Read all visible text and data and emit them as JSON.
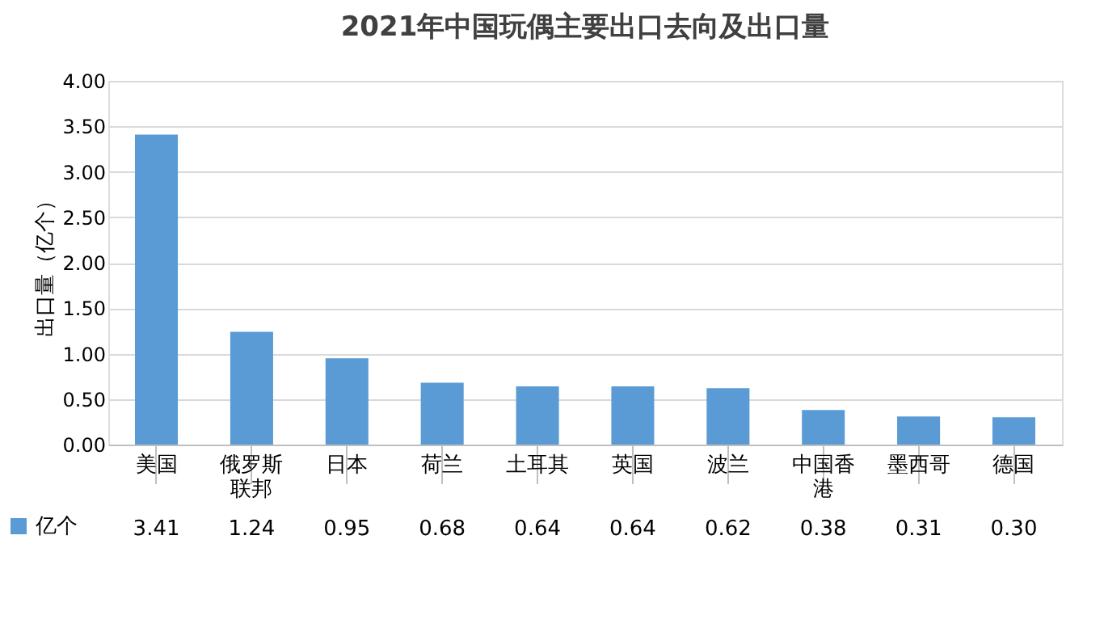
{
  "chart_data": {
    "type": "bar",
    "title": "2021年中国玩偶主要出口去向及出口量",
    "ylabel": "出口量（亿个）",
    "categories": [
      "美国",
      "俄罗斯联邦",
      "日本",
      "荷兰",
      "土耳其",
      "英国",
      "波兰",
      "中国香港",
      "墨西哥",
      "德国"
    ],
    "series": [
      {
        "name": "亿个",
        "color": "#5b9bd5",
        "values": [
          3.41,
          1.24,
          0.95,
          0.68,
          0.64,
          0.64,
          0.62,
          0.38,
          0.31,
          0.3
        ],
        "value_labels": [
          "3.41",
          "1.24",
          "0.95",
          "0.68",
          "0.64",
          "0.64",
          "0.62",
          "0.38",
          "0.31",
          "0.30"
        ]
      }
    ],
    "ylim": [
      0,
      4
    ],
    "yticks": [
      {
        "value": 0,
        "label": "0.00"
      },
      {
        "value": 0.5,
        "label": "0.50"
      },
      {
        "value": 1,
        "label": "1.00"
      },
      {
        "value": 1.5,
        "label": "1.50"
      },
      {
        "value": 2,
        "label": "2.00"
      },
      {
        "value": 2.5,
        "label": "2.50"
      },
      {
        "value": 3,
        "label": "3.00"
      },
      {
        "value": 3.5,
        "label": "3.50"
      },
      {
        "value": 4,
        "label": "4.00"
      }
    ],
    "grid": "y",
    "legend": "bottom"
  }
}
